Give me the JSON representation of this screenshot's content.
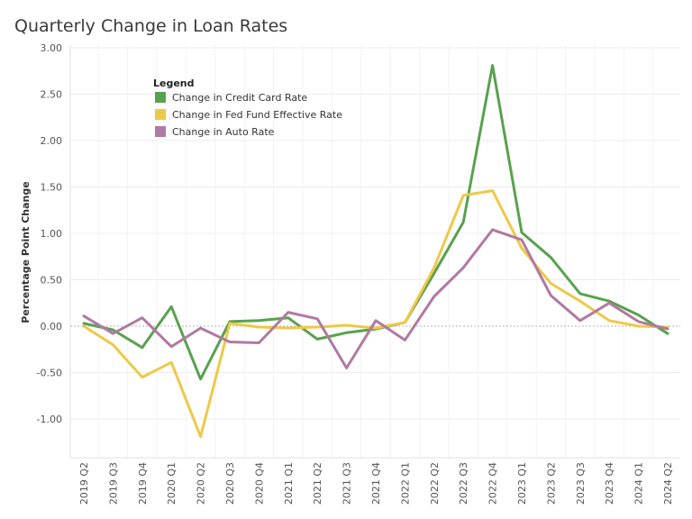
{
  "chart_data": {
    "type": "line",
    "title": "Quarterly Change in Loan Rates",
    "xlabel": "",
    "ylabel": "Percentage Point Change",
    "ylim": [
      -1.4,
      3.0
    ],
    "yticks": [
      3.0,
      2.5,
      2.0,
      1.5,
      1.0,
      0.5,
      0.0,
      -0.5,
      -1.0
    ],
    "ytick_labels": [
      "3.00",
      "2.50",
      "2.00",
      "1.50",
      "1.00",
      "0.50",
      "0.00",
      "-0.50",
      "-1.00"
    ],
    "grid": true,
    "legend": {
      "title": "Legend",
      "placement": "top-left"
    },
    "categories": [
      "2019 Q2",
      "2019 Q3",
      "2019 Q4",
      "2020 Q1",
      "2020 Q2",
      "2020 Q3",
      "2020 Q4",
      "2021 Q1",
      "2021 Q2",
      "2021 Q3",
      "2021 Q4",
      "2022 Q1",
      "2022 Q2",
      "2022 Q3",
      "2022 Q4",
      "2023 Q1",
      "2023 Q2",
      "2023 Q3",
      "2023 Q4",
      "2024 Q1",
      "2024 Q2"
    ],
    "series": [
      {
        "name": "Change in Credit Card Rate",
        "color": "#59a14f",
        "values": [
          0.03,
          -0.04,
          -0.23,
          0.21,
          -0.57,
          0.05,
          0.06,
          0.09,
          -0.14,
          -0.07,
          -0.03,
          0.04,
          0.57,
          1.12,
          2.81,
          1.01,
          0.74,
          0.35,
          0.27,
          0.12,
          -0.08
        ]
      },
      {
        "name": "Change in Fed Fund Effective Rate",
        "color": "#edc948",
        "values": [
          0.0,
          -0.2,
          -0.55,
          -0.39,
          -1.19,
          0.03,
          -0.01,
          -0.02,
          -0.01,
          0.01,
          -0.02,
          0.04,
          0.63,
          1.41,
          1.46,
          0.84,
          0.46,
          0.27,
          0.06,
          0.0,
          -0.01
        ]
      },
      {
        "name": "Change in Auto Rate",
        "color": "#b07aa1",
        "values": [
          0.11,
          -0.08,
          0.09,
          -0.22,
          -0.02,
          -0.17,
          -0.18,
          0.15,
          0.08,
          -0.45,
          0.06,
          -0.15,
          0.32,
          0.63,
          1.04,
          0.93,
          0.33,
          0.06,
          0.25,
          0.05,
          -0.03
        ]
      }
    ]
  }
}
